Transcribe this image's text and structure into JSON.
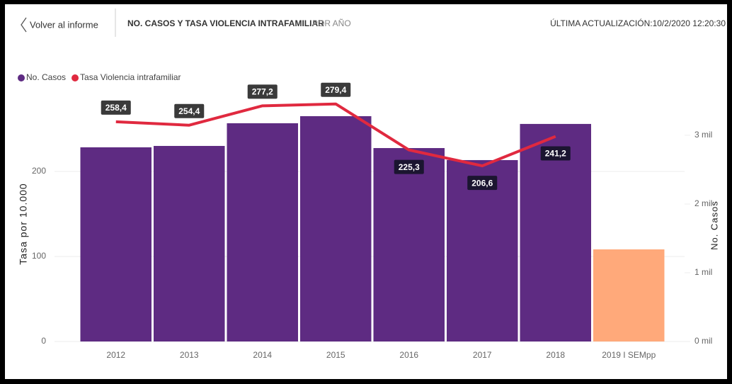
{
  "header": {
    "back": "Volver al informe",
    "title": "NO. CASOS Y TASA VIOLENCIA INTRAFAMILIAR",
    "subtitle": "POR AÑO",
    "updated": "ÚLTIMA ACTUALIZACIÓN:10/2/2020 12:20:30"
  },
  "chart_data": {
    "type": "bar_line",
    "ylabel": "Tasa por 10.000",
    "y2label": "No. Casos",
    "categories": [
      "2012",
      "2013",
      "2014",
      "2015",
      "2016",
      "2017",
      "2018",
      "2019 I SEMpp"
    ],
    "series": [
      {
        "name": "No. Casos",
        "color": "#5e2b82",
        "colors": [
          "#5e2b82",
          "#5e2b82",
          "#5e2b82",
          "#5e2b82",
          "#5e2b82",
          "#5e2b82",
          "#5e2b82",
          "#ffa97a"
        ],
        "axis": "y2",
        "values": [
          2825,
          2845,
          3175,
          3278,
          2814,
          2639,
          3165,
          1340
        ]
      },
      {
        "name": "Tasa Violencia intrafamiliar",
        "color": "#e0293f",
        "axis": "y",
        "values": [
          258.4,
          254.4,
          277.2,
          279.4,
          225.3,
          206.6,
          241.2,
          null
        ],
        "value_labels": [
          "258,4",
          "254,4",
          "277,2",
          "279,4",
          "225,3",
          "206,6",
          "241,2",
          null
        ]
      }
    ],
    "ylim": [
      0,
      285
    ],
    "yticks": [
      0,
      100,
      200
    ],
    "y2lim": [
      0,
      3525
    ],
    "y2ticks": [
      {
        "value": 0,
        "label": "0 mil"
      },
      {
        "value": 1000,
        "label": "1 mil"
      },
      {
        "value": 2000,
        "label": "2 mil"
      },
      {
        "value": 3000,
        "label": "3 mil"
      }
    ],
    "grid": true
  }
}
